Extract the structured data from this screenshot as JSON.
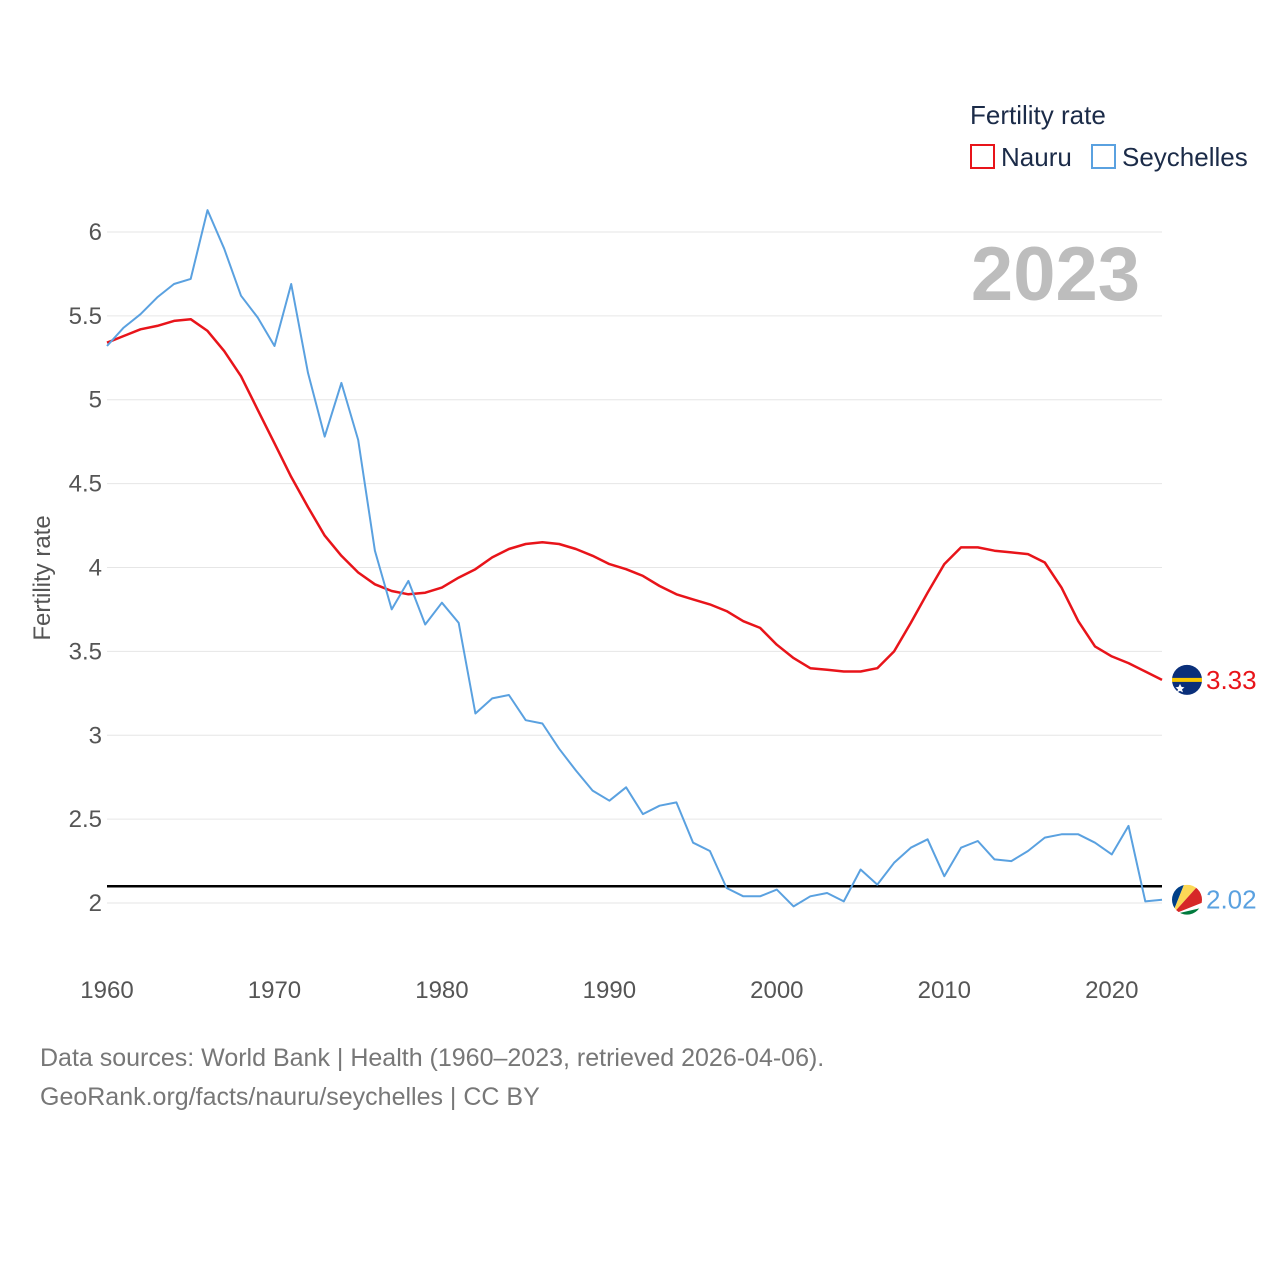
{
  "chart_data": {
    "type": "line",
    "title": "",
    "ylabel": "Fertility rate",
    "xlabel": "",
    "year_label": "2023",
    "legend": {
      "title": "Fertility rate",
      "placement": "top-right"
    },
    "xlim": [
      1960,
      2023
    ],
    "ylim": [
      1.75,
      6.25
    ],
    "x_ticks": [
      1960,
      1970,
      1980,
      1990,
      2000,
      2010,
      2020
    ],
    "y_ticks": [
      2,
      2.5,
      3,
      3.5,
      4,
      4.5,
      5,
      5.5,
      6
    ],
    "x_tick_labels": [
      "1960",
      "1970",
      "1980",
      "1990",
      "2000",
      "2010",
      "2020"
    ],
    "y_tick_labels": [
      "2",
      "2.5",
      "3",
      "3.5",
      "4",
      "4.5",
      "5",
      "5.5",
      "6"
    ],
    "reference_line": {
      "y": 2.1,
      "color": "#000000"
    },
    "x": [
      1960,
      1961,
      1962,
      1963,
      1964,
      1965,
      1966,
      1967,
      1968,
      1969,
      1970,
      1971,
      1972,
      1973,
      1974,
      1975,
      1976,
      1977,
      1978,
      1979,
      1980,
      1981,
      1982,
      1983,
      1984,
      1985,
      1986,
      1987,
      1988,
      1989,
      1990,
      1991,
      1992,
      1993,
      1994,
      1995,
      1996,
      1997,
      1998,
      1999,
      2000,
      2001,
      2002,
      2003,
      2004,
      2005,
      2006,
      2007,
      2008,
      2009,
      2010,
      2011,
      2012,
      2013,
      2014,
      2015,
      2016,
      2017,
      2018,
      2019,
      2020,
      2021,
      2022,
      2023
    ],
    "series": [
      {
        "name": "Nauru",
        "color": "#e8141a",
        "end_label": "3.33",
        "flag": "nauru-flag",
        "values": [
          5.34,
          5.38,
          5.42,
          5.44,
          5.47,
          5.48,
          5.41,
          5.29,
          5.14,
          4.94,
          4.74,
          4.54,
          4.36,
          4.19,
          4.07,
          3.97,
          3.9,
          3.86,
          3.84,
          3.85,
          3.88,
          3.94,
          3.99,
          4.06,
          4.11,
          4.14,
          4.15,
          4.14,
          4.11,
          4.07,
          4.02,
          3.99,
          3.95,
          3.89,
          3.84,
          3.81,
          3.78,
          3.74,
          3.68,
          3.64,
          3.54,
          3.46,
          3.4,
          3.39,
          3.38,
          3.38,
          3.4,
          3.5,
          3.67,
          3.85,
          4.02,
          4.12,
          4.12,
          4.1,
          4.09,
          4.08,
          4.03,
          3.88,
          3.68,
          3.53,
          3.47,
          3.43,
          3.38,
          3.33
        ]
      },
      {
        "name": "Seychelles",
        "color": "#5aa1e0",
        "end_label": "2.02",
        "flag": "seychelles-flag",
        "values": [
          5.32,
          5.43,
          5.51,
          5.61,
          5.69,
          5.72,
          6.13,
          5.9,
          5.62,
          5.49,
          5.32,
          5.69,
          5.16,
          4.78,
          5.1,
          4.76,
          4.1,
          3.75,
          3.92,
          3.66,
          3.79,
          3.67,
          3.13,
          3.22,
          3.24,
          3.09,
          3.07,
          2.92,
          2.79,
          2.67,
          2.61,
          2.69,
          2.53,
          2.58,
          2.6,
          2.36,
          2.31,
          2.09,
          2.04,
          2.04,
          2.08,
          1.98,
          2.04,
          2.06,
          2.01,
          2.2,
          2.11,
          2.24,
          2.33,
          2.38,
          2.16,
          2.33,
          2.37,
          2.26,
          2.25,
          2.31,
          2.39,
          2.41,
          2.41,
          2.36,
          2.29,
          2.46,
          2.01,
          2.02
        ]
      }
    ]
  },
  "footer": {
    "line1": "Data sources: World Bank | Health (1960–2023, retrieved 2026-04-06).",
    "line2": "GeoRank.org/facts/nauru/seychelles | CC BY"
  }
}
